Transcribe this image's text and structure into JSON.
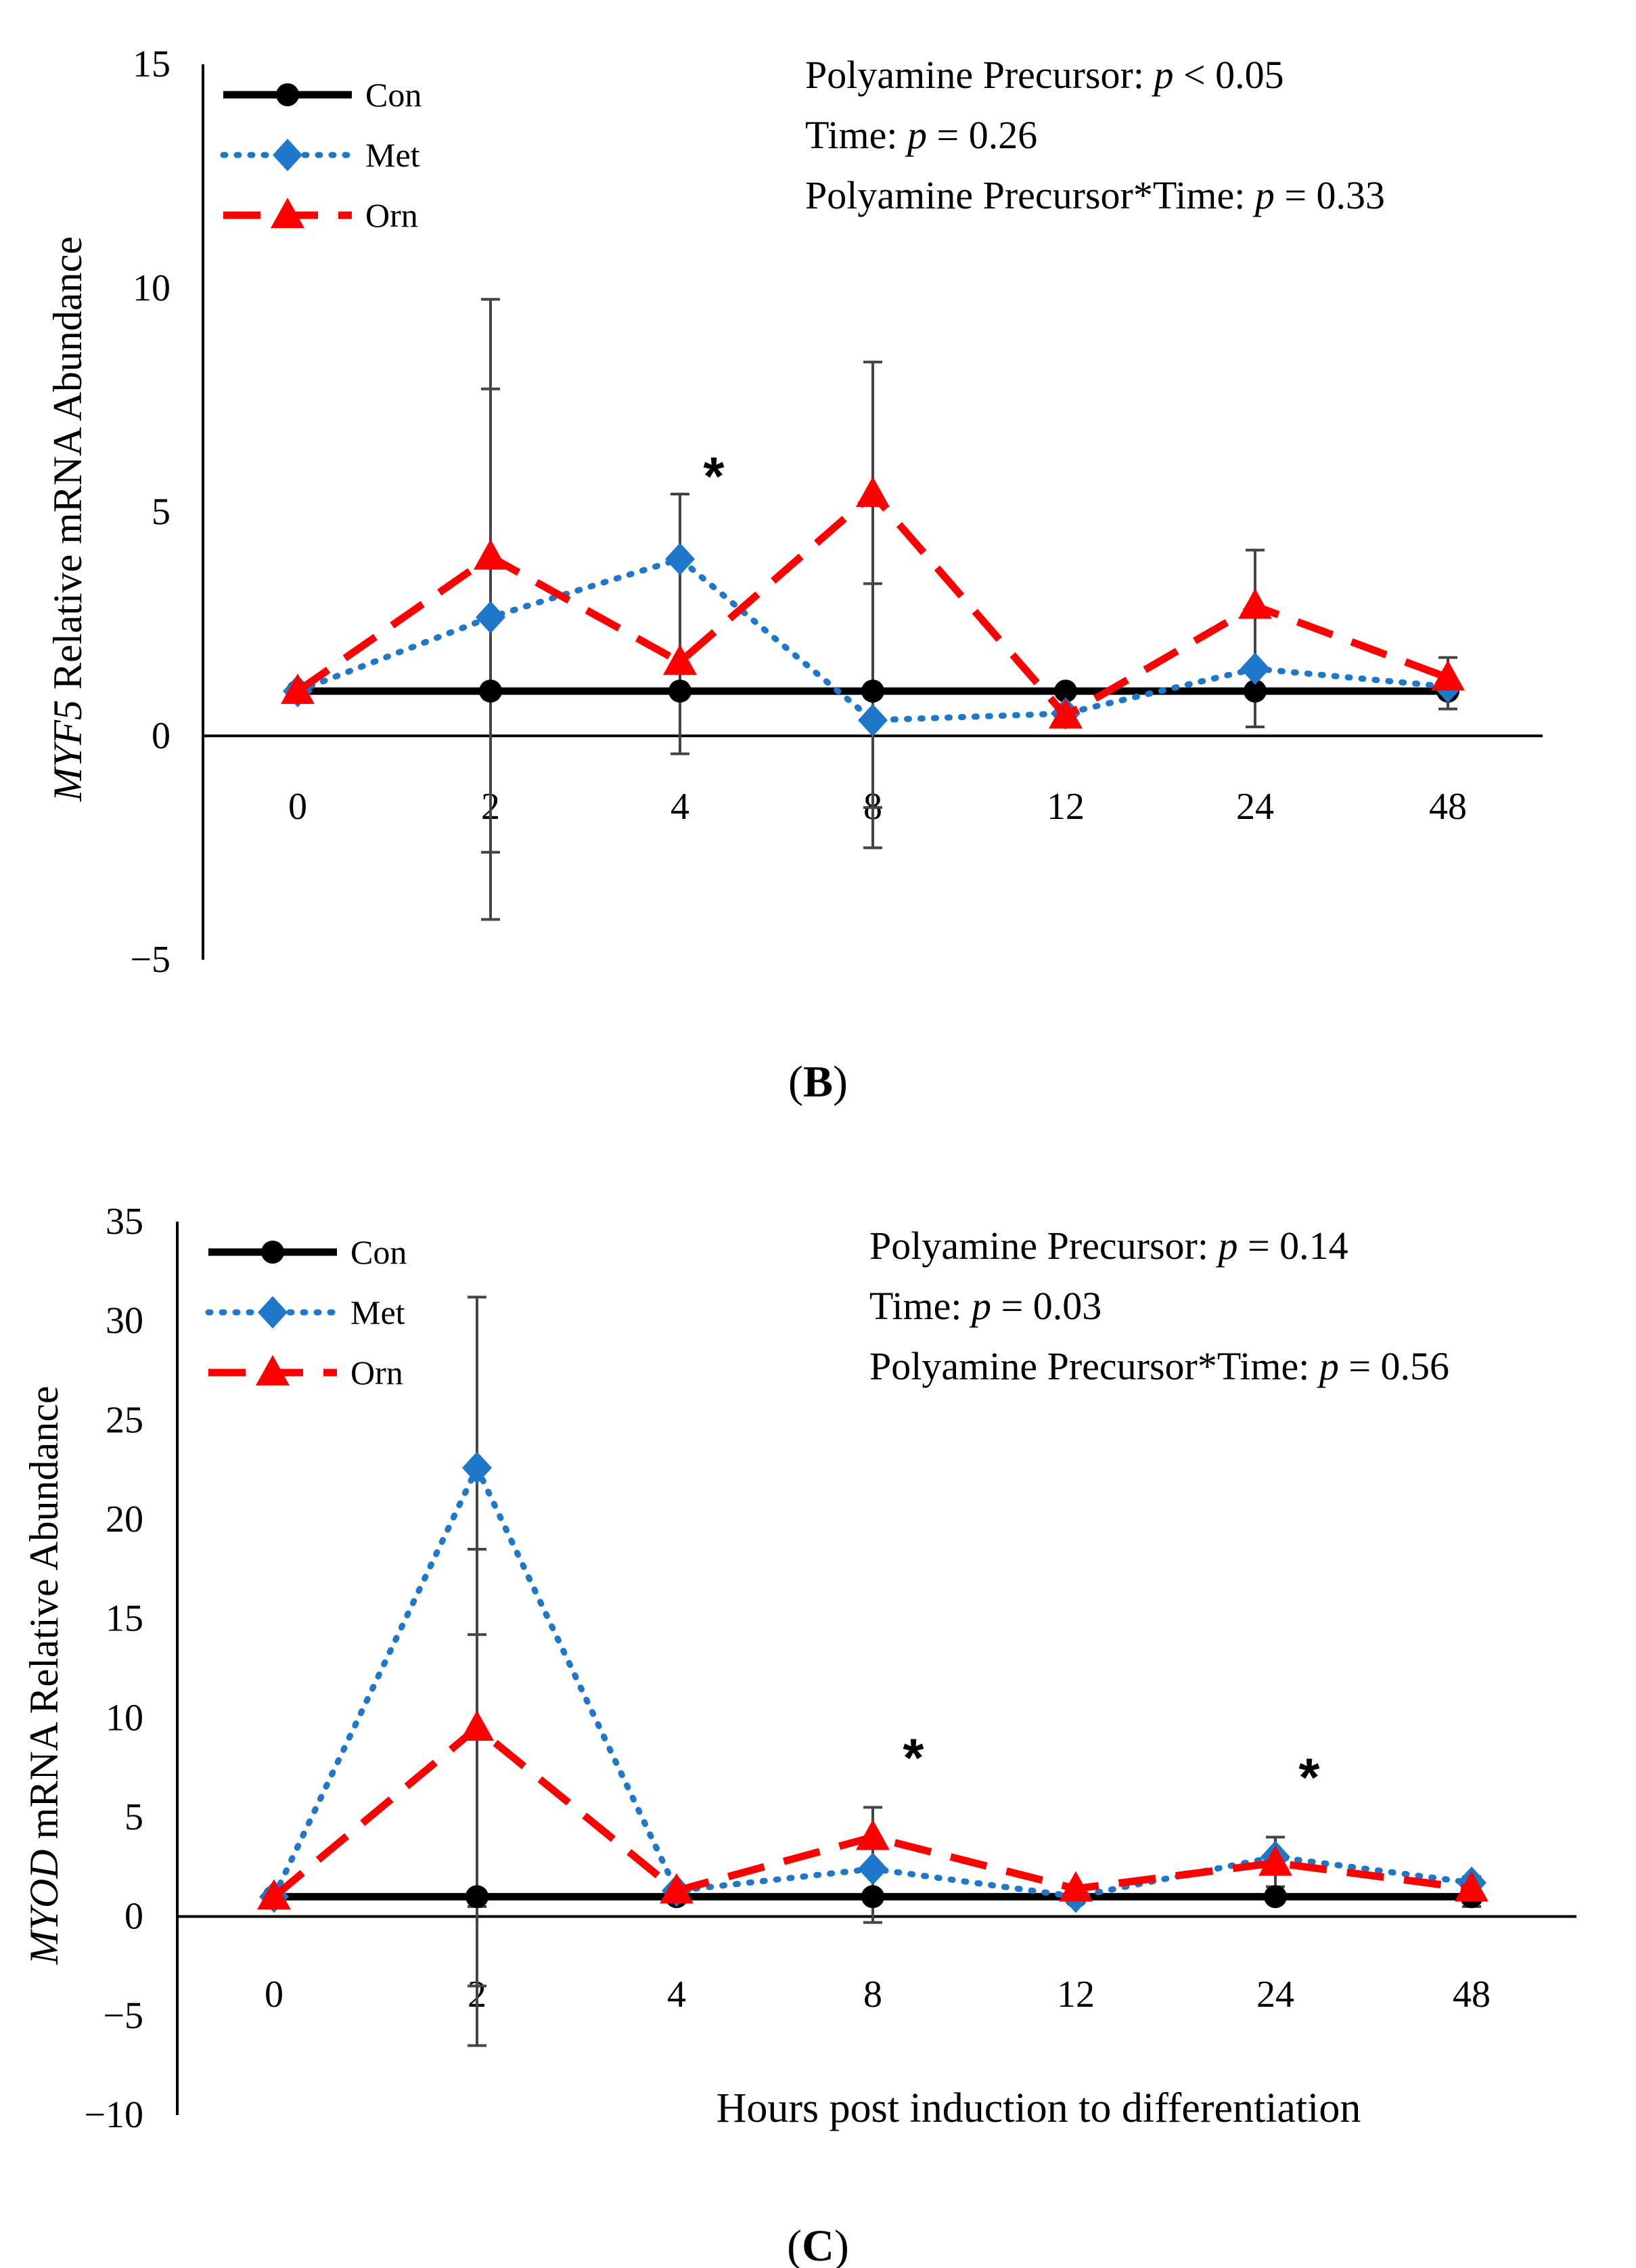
{
  "chart_data": [
    {
      "type": "line",
      "panel_label": "B",
      "gene": "MYF5",
      "ylabel_suffix": " Relative mRNA Abundance",
      "xlabel": "",
      "categories": [
        "0",
        "2",
        "4",
        "8",
        "12",
        "24",
        "48"
      ],
      "ylim": [
        -5,
        15
      ],
      "yticks": [
        "−5",
        "0",
        "5",
        "10",
        "15"
      ],
      "ytick_values": [
        -5,
        0,
        5,
        10,
        15
      ],
      "series": [
        {
          "name": "Con",
          "color": "#000000",
          "marker": "circle",
          "values": [
            1,
            1,
            1,
            1,
            1,
            1,
            1
          ]
        },
        {
          "name": "Met",
          "color": "#1f77c9",
          "marker": "diamond",
          "values": [
            1,
            2.65,
            3.95,
            0.35,
            0.5,
            1.5,
            1.1
          ]
        },
        {
          "name": "Orn",
          "color": "#ff0000",
          "marker": "triangle",
          "values": [
            1,
            4.0,
            1.65,
            5.4,
            0.45,
            2.9,
            1.3
          ]
        }
      ],
      "error_bars": [
        {
          "x_index": 1,
          "low": -4.1,
          "high": 9.75
        },
        {
          "x_index": 1,
          "low": -2.6,
          "high": 7.75
        },
        {
          "x_index": 2,
          "low": -0.4,
          "high": 5.4
        },
        {
          "x_index": 3,
          "low": -2.5,
          "high": 8.35
        },
        {
          "x_index": 3,
          "low": -1.6,
          "high": 3.4
        },
        {
          "x_index": 5,
          "low": 0.2,
          "high": 4.15
        },
        {
          "x_index": 6,
          "low": 0.6,
          "high": 1.75
        }
      ],
      "significance": [
        {
          "x_index": 2,
          "label": "*"
        }
      ],
      "annotations": [
        {
          "prefix": "Polyamine Precursor: ",
          "p": "p",
          "suffix": " < 0.05"
        },
        {
          "prefix": "Time: ",
          "p": "p",
          "suffix": " = 0.26"
        },
        {
          "prefix": "Polyamine Precursor*Time: ",
          "p": "p",
          "suffix": " = 0.33"
        }
      ]
    },
    {
      "type": "line",
      "panel_label": "C",
      "gene": "MYOD",
      "ylabel_suffix": " mRNA Relative Abundance",
      "xlabel": "Hours post induction to differentiation",
      "categories": [
        "0",
        "2",
        "4",
        "8",
        "12",
        "24",
        "48"
      ],
      "ylim": [
        -10,
        35
      ],
      "yticks": [
        "−10",
        "−5",
        "0",
        "5",
        "10",
        "15",
        "20",
        "25",
        "30",
        "35"
      ],
      "ytick_values": [
        -10,
        -5,
        0,
        5,
        10,
        15,
        20,
        25,
        30,
        35
      ],
      "series": [
        {
          "name": "Con",
          "color": "#000000",
          "marker": "circle",
          "values": [
            1,
            1,
            1,
            1,
            1,
            1,
            1
          ]
        },
        {
          "name": "Met",
          "color": "#1f77c9",
          "marker": "diamond",
          "values": [
            1,
            22.6,
            1.3,
            2.4,
            1.0,
            3.0,
            1.7
          ]
        },
        {
          "name": "Orn",
          "color": "#ff0000",
          "marker": "triangle",
          "values": [
            1,
            9.5,
            1.3,
            4.0,
            1.4,
            2.7,
            1.4
          ]
        }
      ],
      "error_bars": [
        {
          "x_index": 1,
          "low": -6.5,
          "high": 31.2
        },
        {
          "x_index": 1,
          "low": -3.5,
          "high": 18.5
        },
        {
          "x_index": 1,
          "low": 0.5,
          "high": 14.2
        },
        {
          "x_index": 3,
          "low": -0.3,
          "high": 5.5
        },
        {
          "x_index": 5,
          "low": 1.5,
          "high": 4.0
        },
        {
          "x_index": 6,
          "low": 0.5,
          "high": 2.0
        }
      ],
      "significance": [
        {
          "x_index": 3,
          "label": "*"
        },
        {
          "x_index": 5,
          "label": "*"
        }
      ],
      "annotations": [
        {
          "prefix": "Polyamine Precursor: ",
          "p": "p",
          "suffix": " = 0.14"
        },
        {
          "prefix": "Time: ",
          "p": "p",
          "suffix": " = 0.03"
        },
        {
          "prefix": "Polyamine Precursor*Time: ",
          "p": "p",
          "suffix": " = 0.56"
        }
      ]
    }
  ]
}
